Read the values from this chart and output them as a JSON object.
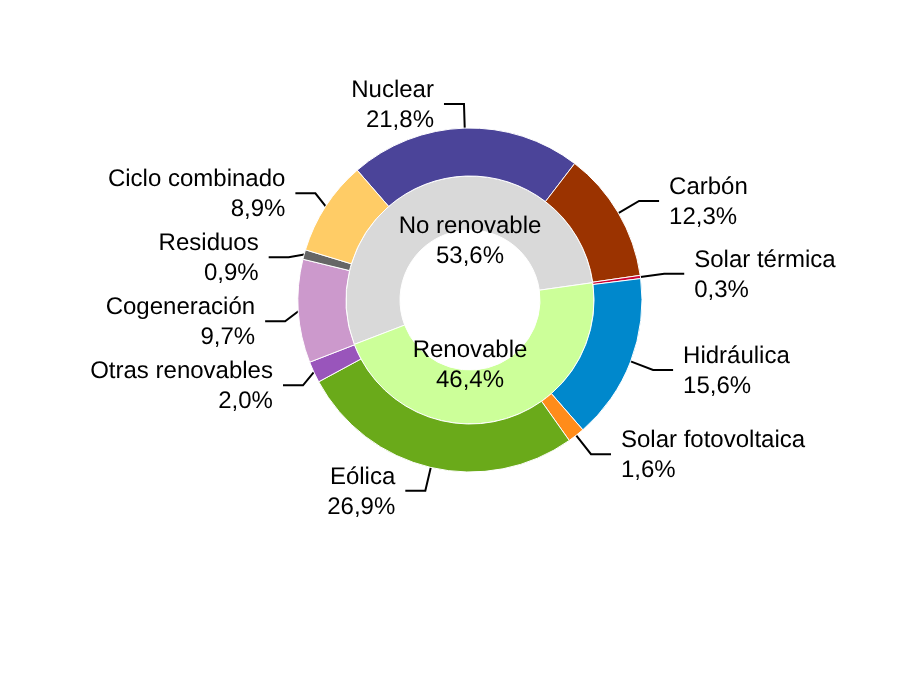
{
  "chart_data": [
    {
      "type": "donut",
      "categories": [
        "No renovable",
        "Renovable"
      ],
      "values": [
        53.6,
        46.4
      ],
      "colors": [
        "#d9d9d9",
        "#ccff99"
      ],
      "value_labels": [
        "53,6%",
        "46,4%"
      ]
    },
    {
      "type": "donut",
      "categories": [
        "Nuclear",
        "Carbón",
        "Solar térmica",
        "Hidráulica",
        "Solar fotovoltaica",
        "Eólica",
        "Otras renovables",
        "Cogeneración",
        "Residuos",
        "Ciclo combinado"
      ],
      "values": [
        21.8,
        12.3,
        0.3,
        15.6,
        1.6,
        26.9,
        2.0,
        9.7,
        0.9,
        8.9
      ],
      "colors": [
        "#4b4499",
        "#9b3300",
        "#cc0033",
        "#0088cc",
        "#ff8c1a",
        "#6aaa1a",
        "#9955bb",
        "#cc99cc",
        "#666666",
        "#ffcc66"
      ],
      "value_labels": [
        "21,8%",
        "12,3%",
        "0,3%",
        "15,6%",
        "1,6%",
        "26,9%",
        "2,0%",
        "9,7%",
        "0,9%",
        "8,9%"
      ]
    }
  ]
}
